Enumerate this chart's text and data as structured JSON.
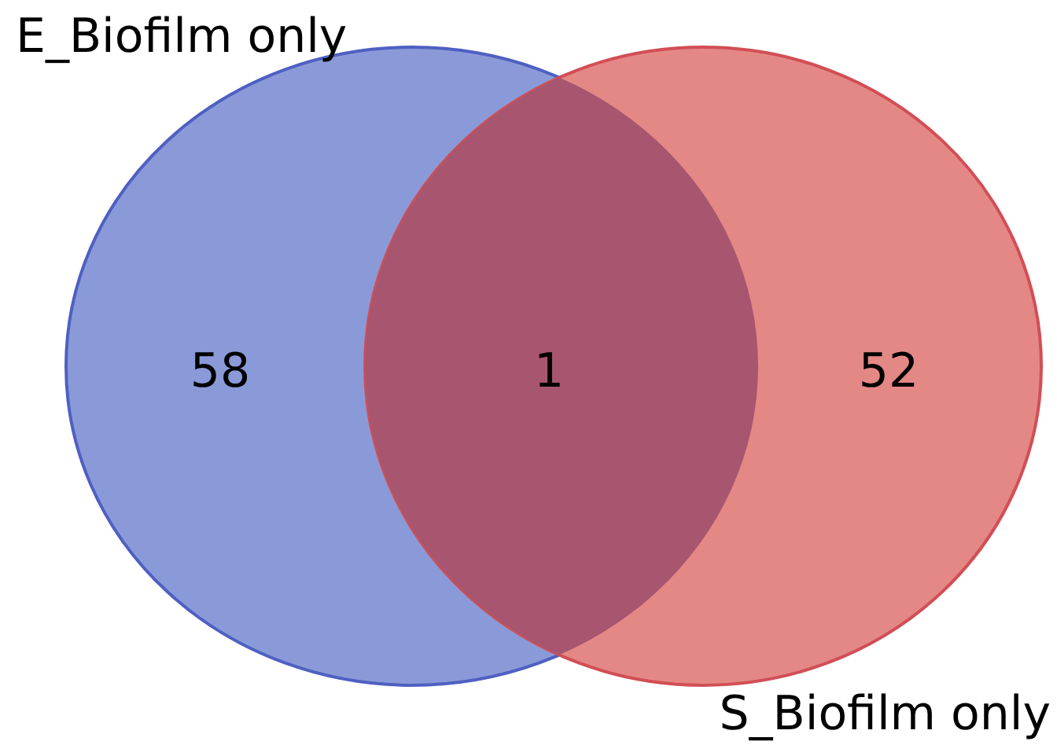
{
  "chart_data": {
    "type": "other",
    "categories": [
      "E_Biofilm only",
      null,
      "S_Biofilm only"
    ],
    "values": [
      58,
      1,
      52
    ],
    "colors": [
      "#8a9ad8",
      "#a8566f",
      "#e48886"
    ],
    "data_labels": true
  }
}
